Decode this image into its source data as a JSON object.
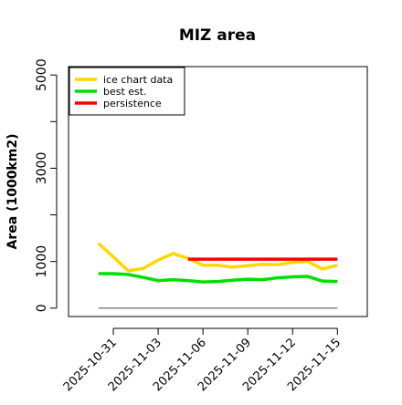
{
  "chart_data": {
    "type": "line",
    "title": "MIZ area",
    "y_label": "Area (1000km2)",
    "x": [
      "2025-10-30",
      "2025-10-31",
      "2025-11-01",
      "2025-11-02",
      "2025-11-03",
      "2025-11-04",
      "2025-11-05",
      "2025-11-06",
      "2025-11-07",
      "2025-11-08",
      "2025-11-09",
      "2025-11-10",
      "2025-11-11",
      "2025-11-12",
      "2025-11-13",
      "2025-11-14",
      "2025-11-15"
    ],
    "series": [
      {
        "name": "ice chart data",
        "color": "#ffd700",
        "values": [
          1390,
          1100,
          800,
          850,
          1030,
          1170,
          1070,
          920,
          920,
          880,
          910,
          940,
          930,
          980,
          1000,
          840,
          920
        ]
      },
      {
        "name": "best est.",
        "color": "#00e000",
        "values": [
          740,
          740,
          720,
          660,
          590,
          610,
          590,
          560,
          570,
          600,
          620,
          610,
          650,
          670,
          680,
          580,
          570
        ]
      },
      {
        "name": "persistence",
        "color": "#ff0000",
        "values": [
          null,
          null,
          null,
          null,
          null,
          null,
          1050,
          1050,
          1050,
          1050,
          1050,
          1050,
          1050,
          1050,
          1050,
          1050,
          1050
        ]
      }
    ],
    "hline": 0,
    "hline_color": "#888888",
    "xlim": [
      "2025-10-28",
      "2025-11-17"
    ],
    "xticks": [
      "2025-10-31",
      "2025-11-03",
      "2025-11-06",
      "2025-11-09",
      "2025-11-12",
      "2025-11-15"
    ],
    "ylim": [
      -180,
      5180
    ],
    "yticks": [
      0,
      1000,
      3000,
      5000
    ],
    "yminor_ticks": [
      2000,
      4000
    ],
    "legend": "top-left"
  }
}
